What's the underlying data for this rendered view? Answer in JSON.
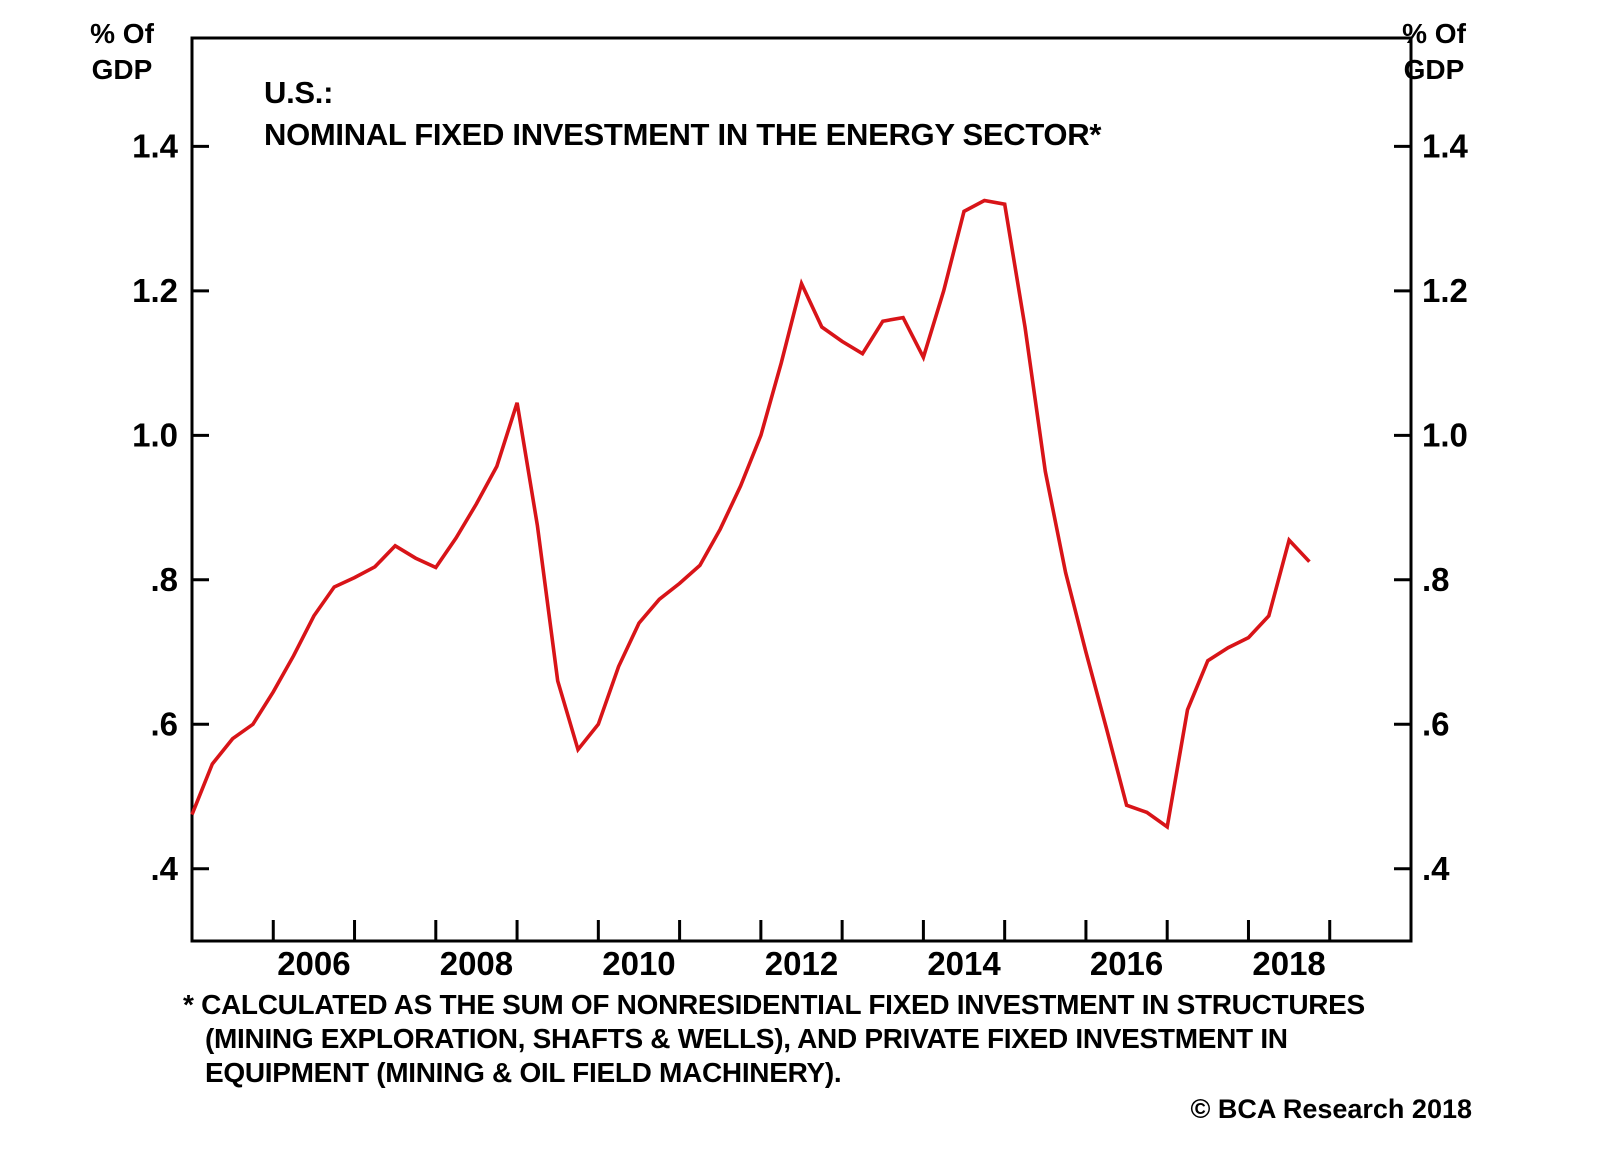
{
  "title": {
    "line1": "U.S.:",
    "line2": "NOMINAL FIXED INVESTMENT IN THE ENERGY SECTOR*"
  },
  "y_axis_unit": {
    "line1": "% Of",
    "line2": "GDP"
  },
  "footnote": {
    "lines": [
      "* CALCULATED AS THE SUM OF NONRESIDENTIAL FIXED INVESTMENT IN STRUCTURES",
      "(MINING EXPLORATION, SHAFTS & WELLS), AND PRIVATE FIXED INVESTMENT IN",
      "EQUIPMENT (MINING & OIL FIELD MACHINERY)."
    ]
  },
  "copyright": "© BCA Research 2018",
  "colors": {
    "line": "#d81418",
    "axis": "#000000",
    "text": "#000000",
    "background": "#ffffff"
  },
  "chart_data": {
    "type": "line",
    "title": "U.S.: NOMINAL FIXED INVESTMENT IN THE ENERGY SECTOR*",
    "xlabel": "",
    "ylabel": "% Of GDP",
    "legend": null,
    "grid": false,
    "xlim": [
      2005,
      2020
    ],
    "ylim": [
      0.3,
      1.55
    ],
    "y_ticks": [
      {
        "value": 1.4,
        "label": "1.4"
      },
      {
        "value": 1.2,
        "label": "1.2"
      },
      {
        "value": 1.0,
        "label": "1.0"
      },
      {
        "value": 0.8,
        "label": ".8"
      },
      {
        "value": 0.6,
        "label": ".6"
      },
      {
        "value": 0.4,
        "label": ".4"
      }
    ],
    "x_ticks": [
      2006,
      2007,
      2008,
      2009,
      2010,
      2011,
      2012,
      2013,
      2014,
      2015,
      2016,
      2017,
      2018,
      2019
    ],
    "x_tick_labels": [
      {
        "center": 2006.5,
        "label": "2006"
      },
      {
        "center": 2008.5,
        "label": "2008"
      },
      {
        "center": 2010.5,
        "label": "2010"
      },
      {
        "center": 2012.5,
        "label": "2012"
      },
      {
        "center": 2014.5,
        "label": "2014"
      },
      {
        "center": 2016.5,
        "label": "2016"
      },
      {
        "center": 2018.5,
        "label": "2018"
      }
    ],
    "series": [
      {
        "name": "Nominal fixed investment in the energy sector (% of GDP)",
        "x": [
          2005.0,
          2005.25,
          2005.5,
          2005.75,
          2006.0,
          2006.25,
          2006.5,
          2006.75,
          2007.0,
          2007.25,
          2007.5,
          2007.75,
          2008.0,
          2008.25,
          2008.5,
          2008.75,
          2009.0,
          2009.25,
          2009.5,
          2009.75,
          2010.0,
          2010.25,
          2010.5,
          2010.75,
          2011.0,
          2011.25,
          2011.5,
          2011.75,
          2012.0,
          2012.25,
          2012.5,
          2012.75,
          2013.0,
          2013.25,
          2013.5,
          2013.75,
          2014.0,
          2014.25,
          2014.5,
          2014.75,
          2015.0,
          2015.25,
          2015.5,
          2015.75,
          2016.0,
          2016.25,
          2016.5,
          2016.75,
          2017.0,
          2017.25,
          2017.5,
          2017.75,
          2018.0,
          2018.25,
          2018.5,
          2018.75
        ],
        "values": [
          0.475,
          0.545,
          0.58,
          0.6,
          0.645,
          0.695,
          0.75,
          0.79,
          0.803,
          0.818,
          0.847,
          0.83,
          0.817,
          0.858,
          0.905,
          0.957,
          1.045,
          0.875,
          0.66,
          0.565,
          0.6,
          0.68,
          0.74,
          0.773,
          0.795,
          0.82,
          0.87,
          0.93,
          1.0,
          1.1,
          1.21,
          1.15,
          1.13,
          1.113,
          1.158,
          1.163,
          1.108,
          1.2,
          1.31,
          1.325,
          1.32,
          1.15,
          0.95,
          0.81,
          0.7,
          0.595,
          0.488,
          0.478,
          0.458,
          0.62,
          0.688,
          0.706,
          0.72,
          0.75,
          0.855,
          0.825
        ]
      }
    ]
  }
}
